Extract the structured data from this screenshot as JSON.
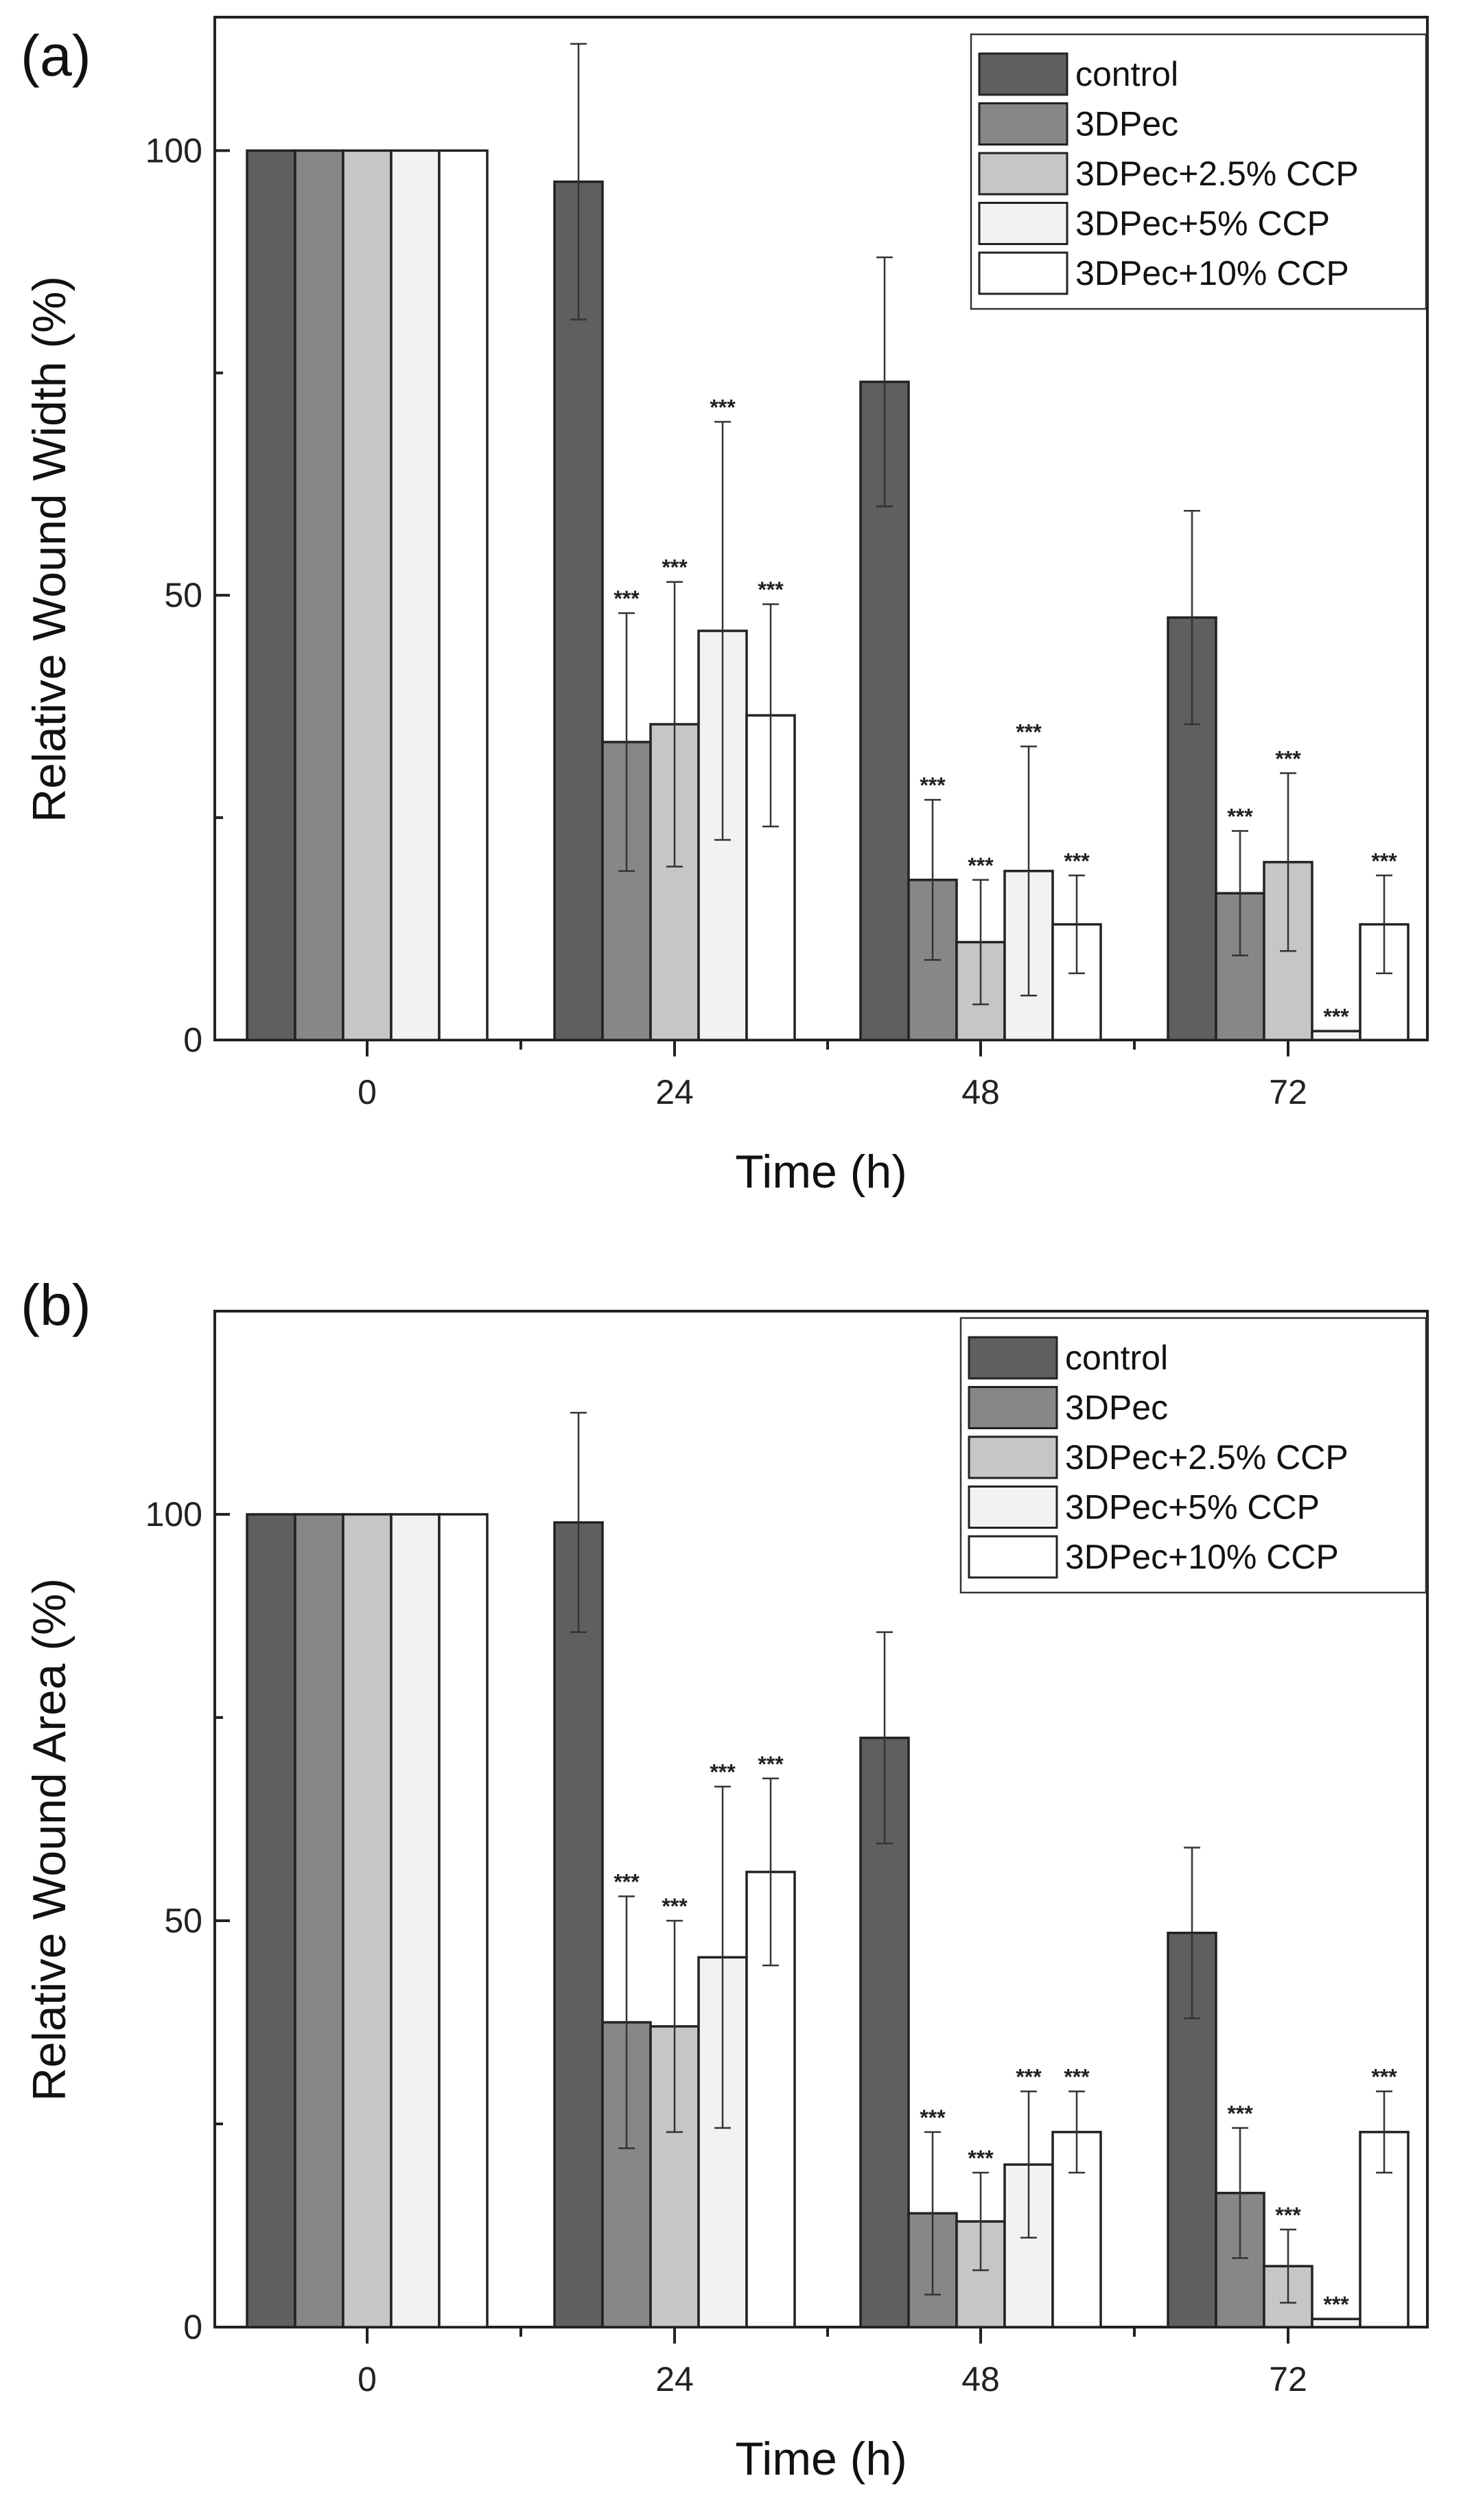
{
  "legend": {
    "entries": [
      "control",
      "3DPec",
      "3DPec+2.5% CCP",
      "3DPec+5% CCP",
      "3DPec+10% CCP"
    ],
    "colors": [
      "#5f5f5f",
      "#878787",
      "#c6c6c6",
      "#f2f2f2",
      "#ffffff"
    ]
  },
  "chart_data": [
    {
      "type": "bar",
      "panel_label": "(a)",
      "title": "",
      "xlabel": "Time (h)",
      "ylabel": "Relative Wound Width (%)",
      "categories": [
        "0",
        "24",
        "48",
        "72"
      ],
      "ylim": [
        0,
        115
      ],
      "yticks": [
        0,
        50,
        100
      ],
      "grid": false,
      "legend_position": "top-right",
      "significance_marker": "***",
      "series": [
        {
          "name": "control",
          "values": [
            100,
            96.5,
            74,
            47.5
          ],
          "errors": [
            0,
            15.5,
            14,
            12
          ],
          "significant": [
            false,
            false,
            false,
            false
          ]
        },
        {
          "name": "3DPec",
          "values": [
            100,
            33.5,
            18,
            16.5
          ],
          "errors": [
            0,
            14.5,
            9,
            7
          ],
          "significant": [
            false,
            true,
            true,
            true
          ]
        },
        {
          "name": "3DPec+2.5% CCP",
          "values": [
            100,
            35.5,
            11,
            20
          ],
          "errors": [
            0,
            16,
            7,
            10
          ],
          "significant": [
            false,
            true,
            true,
            true
          ]
        },
        {
          "name": "3DPec+5% CCP",
          "values": [
            100,
            46,
            19,
            1
          ],
          "errors": [
            0,
            23.5,
            14,
            0
          ],
          "significant": [
            false,
            true,
            true,
            true
          ]
        },
        {
          "name": "3DPec+10% CCP",
          "values": [
            100,
            36.5,
            13,
            13
          ],
          "errors": [
            0,
            12.5,
            5.5,
            5.5
          ],
          "significant": [
            false,
            true,
            true,
            true
          ]
        }
      ]
    },
    {
      "type": "bar",
      "panel_label": "(b)",
      "title": "",
      "xlabel": "Time (h)",
      "ylabel": "Relative Wound Area (%)",
      "categories": [
        "0",
        "24",
        "48",
        "72"
      ],
      "ylim": [
        0,
        125
      ],
      "yticks": [
        0,
        50,
        100
      ],
      "grid": false,
      "legend_position": "top-right",
      "significance_marker": "***",
      "series": [
        {
          "name": "control",
          "values": [
            100,
            99,
            72.5,
            48.5
          ],
          "errors": [
            0,
            13.5,
            13,
            10.5
          ],
          "significant": [
            false,
            false,
            false,
            false
          ]
        },
        {
          "name": "3DPec",
          "values": [
            100,
            37.5,
            14,
            16.5
          ],
          "errors": [
            0,
            15.5,
            10,
            8
          ],
          "significant": [
            false,
            true,
            true,
            true
          ]
        },
        {
          "name": "3DPec+2.5% CCP",
          "values": [
            100,
            37,
            13,
            7.5
          ],
          "errors": [
            0,
            13,
            6,
            4.5
          ],
          "significant": [
            false,
            true,
            true,
            true
          ]
        },
        {
          "name": "3DPec+5% CCP",
          "values": [
            100,
            45.5,
            20,
            1
          ],
          "errors": [
            0,
            21,
            9,
            0
          ],
          "significant": [
            false,
            true,
            true,
            true
          ]
        },
        {
          "name": "3DPec+10% CCP",
          "values": [
            100,
            56,
            24,
            24
          ],
          "errors": [
            0,
            11.5,
            5,
            5
          ],
          "significant": [
            false,
            true,
            true,
            true
          ]
        }
      ]
    }
  ]
}
